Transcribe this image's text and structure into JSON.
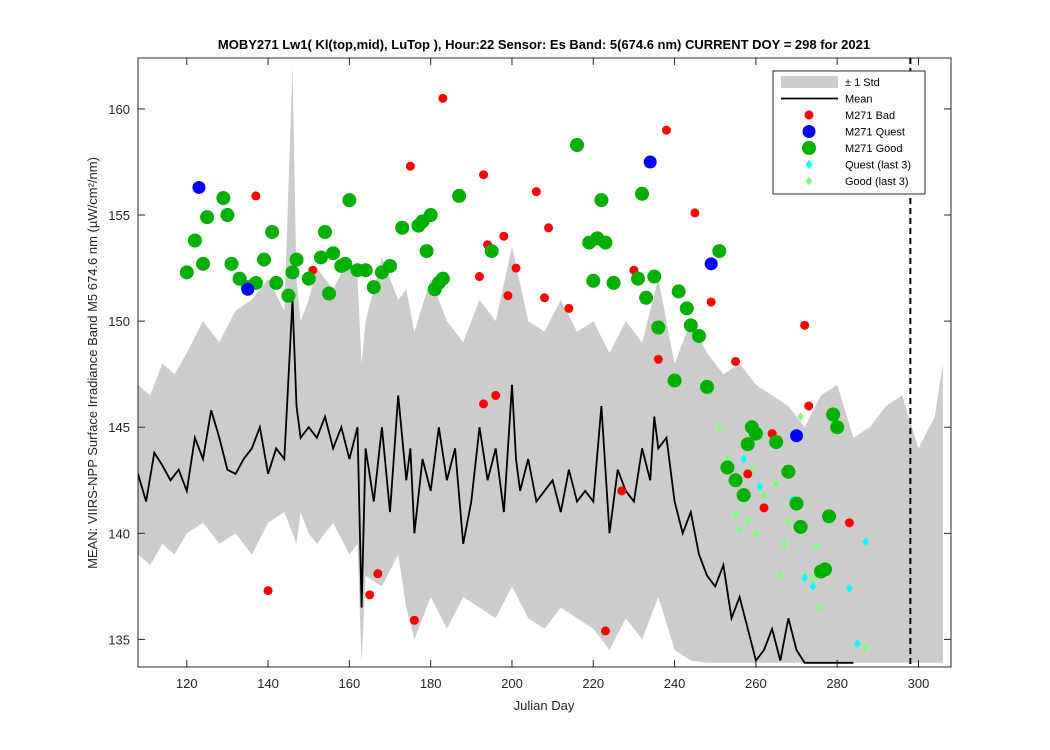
{
  "chart_data": {
    "type": "scatter",
    "title": "MOBY271   Lw1( Kl(top,mid), LuTop ),   Hour:22 Sensor: Es Band: 5(674.6 nm)   CURRENT DOY = 298 for 2021",
    "xlabel": "Julian Day",
    "ylabel": "MEAN: VIIRS-NPP Surface Irradiance Band M5 674.6 nm (µW/cm²/nm)",
    "xlim": [
      108,
      308
    ],
    "ylim": [
      133.7,
      162.4
    ],
    "xticks": [
      120,
      140,
      160,
      180,
      200,
      220,
      240,
      260,
      280,
      300
    ],
    "yticks": [
      135,
      140,
      145,
      150,
      155,
      160
    ],
    "grid": false,
    "legend_position": "top-right",
    "current_doy": 298,
    "colors": {
      "std_band": "#cccccc",
      "mean": "#000000",
      "bad": "#ff0000",
      "quest": "#0000ff",
      "good": "#00b000",
      "quest_last3": "#00ffff",
      "good_last3": "#80ff80"
    },
    "legend": [
      "± 1 Std",
      "Mean",
      "M271 Bad",
      "M271 Quest",
      "M271 Good",
      "Quest (last 3)",
      "Good (last 3)"
    ],
    "series": [
      {
        "name": "Mean",
        "kind": "line",
        "x": [
          108,
          110,
          112,
          114,
          116,
          118,
          120,
          122,
          124,
          126,
          128,
          130,
          132,
          134,
          136,
          138,
          140,
          142,
          144,
          146,
          147,
          148,
          150,
          152,
          154,
          156,
          158,
          160,
          162,
          163,
          164,
          166,
          168,
          170,
          172,
          174,
          175,
          176,
          178,
          180,
          182,
          184,
          186,
          188,
          190,
          192,
          194,
          196,
          198,
          200,
          201,
          202,
          204,
          206,
          208,
          210,
          212,
          214,
          216,
          218,
          220,
          222,
          224,
          226,
          228,
          230,
          232,
          234,
          235,
          236,
          238,
          240,
          242,
          244,
          246,
          248,
          250,
          252,
          254,
          256,
          258,
          260,
          262,
          264,
          266,
          268,
          270,
          272,
          274,
          276,
          278,
          280,
          282,
          284
        ],
        "y": [
          142.8,
          141.5,
          143.8,
          143.2,
          142.5,
          143.0,
          142.0,
          144.5,
          143.5,
          145.8,
          144.5,
          143.0,
          142.8,
          143.5,
          144.0,
          145.0,
          142.8,
          144.0,
          143.5,
          151.0,
          146.0,
          144.5,
          145.0,
          144.5,
          145.5,
          144.0,
          145.0,
          143.5,
          145.0,
          136.5,
          144.0,
          141.5,
          145.0,
          141.0,
          146.5,
          142.5,
          144.0,
          140.0,
          143.5,
          142.0,
          145.0,
          142.5,
          144.0,
          139.5,
          141.5,
          145.0,
          142.5,
          144.0,
          141.0,
          147.0,
          143.5,
          142.0,
          143.5,
          141.5,
          142.0,
          142.5,
          141.0,
          143.0,
          141.5,
          142.0,
          141.5,
          146.0,
          140.0,
          143.0,
          142.0,
          141.5,
          144.0,
          142.5,
          145.5,
          144.0,
          144.5,
          141.5,
          140.0,
          141.0,
          139.0,
          138.0,
          137.5,
          138.5,
          136.0,
          137.0,
          135.5,
          134.0,
          134.5,
          135.5,
          134.0,
          136.0,
          134.5,
          133.9,
          133.9,
          133.9,
          133.9,
          133.9,
          133.9,
          133.9
        ]
      },
      {
        "name": "± 1 Std",
        "kind": "band",
        "x": [
          108,
          111,
          114,
          117,
          120,
          124,
          128,
          132,
          136,
          140,
          144,
          146,
          147,
          148,
          150,
          152,
          156,
          160,
          162,
          163,
          164,
          168,
          172,
          174,
          176,
          180,
          184,
          188,
          192,
          196,
          200,
          204,
          208,
          212,
          216,
          220,
          224,
          228,
          232,
          236,
          240,
          244,
          248,
          252,
          256,
          260,
          264,
          268,
          272,
          276,
          280,
          284,
          288,
          292,
          296,
          300,
          304,
          306
        ],
        "upper": [
          147.0,
          146.5,
          148.0,
          147.5,
          148.5,
          150.0,
          149.0,
          150.5,
          151.0,
          152.0,
          150.5,
          162.0,
          152.0,
          150.0,
          151.0,
          152.5,
          151.5,
          153.0,
          152.0,
          148.0,
          150.0,
          153.0,
          151.0,
          151.5,
          149.5,
          152.0,
          150.0,
          149.0,
          151.0,
          150.0,
          153.5,
          150.0,
          149.5,
          151.0,
          149.5,
          150.0,
          148.5,
          150.0,
          149.0,
          152.0,
          148.0,
          150.0,
          148.5,
          147.5,
          148.0,
          147.0,
          146.5,
          146.0,
          145.0,
          146.5,
          147.0,
          144.5,
          145.0,
          146.0,
          146.5,
          144.0,
          145.5,
          148.0
        ],
        "lower": [
          139.0,
          138.5,
          139.5,
          139.0,
          140.0,
          140.5,
          139.5,
          140.0,
          139.0,
          140.5,
          141.0,
          140.0,
          139.5,
          141.0,
          140.0,
          139.5,
          140.5,
          139.0,
          139.5,
          133.9,
          138.0,
          137.5,
          139.0,
          136.5,
          135.0,
          137.0,
          135.5,
          137.0,
          136.5,
          136.0,
          137.5,
          136.0,
          135.5,
          136.5,
          136.0,
          135.5,
          134.5,
          136.0,
          135.0,
          137.0,
          134.5,
          134.0,
          133.9,
          133.9,
          133.9,
          133.9,
          133.9,
          133.9,
          133.9,
          133.9,
          133.9,
          133.9,
          133.9,
          133.9,
          133.9,
          133.9,
          133.9,
          133.9
        ]
      },
      {
        "name": "M271 Bad",
        "kind": "points",
        "x": [
          131,
          137,
          140,
          151,
          165,
          167,
          170,
          175,
          176,
          183,
          192,
          193,
          193,
          194,
          196,
          198,
          199,
          201,
          206,
          208,
          209,
          214,
          223,
          227,
          230,
          236,
          238,
          245,
          249,
          255,
          258,
          262,
          264,
          272,
          273,
          283
        ],
        "y": [
          152.6,
          155.9,
          137.3,
          152.4,
          137.1,
          138.1,
          152.5,
          157.3,
          135.9,
          160.5,
          152.1,
          156.9,
          146.1,
          153.6,
          146.5,
          154.0,
          151.2,
          152.5,
          156.1,
          151.1,
          154.4,
          150.6,
          135.4,
          142.0,
          152.4,
          148.2,
          159.0,
          155.1,
          150.9,
          148.1,
          142.8,
          141.2,
          144.7,
          149.8,
          146.0,
          140.5
        ]
      },
      {
        "name": "M271 Quest",
        "kind": "points",
        "x": [
          123,
          135,
          234,
          249,
          270
        ],
        "y": [
          156.3,
          151.5,
          157.5,
          152.7,
          144.6
        ]
      },
      {
        "name": "M271 Good",
        "kind": "points",
        "x": [
          120,
          122,
          124,
          125,
          129,
          130,
          131,
          133,
          135,
          137,
          139,
          141,
          142,
          145,
          146,
          147,
          150,
          153,
          154,
          155,
          156,
          158,
          159,
          160,
          162,
          164,
          166,
          168,
          170,
          173,
          177,
          178,
          179,
          180,
          181,
          182,
          183,
          187,
          195,
          216,
          219,
          220,
          221,
          222,
          223,
          225,
          231,
          232,
          233,
          235,
          236,
          240,
          241,
          243,
          244,
          246,
          248,
          251,
          253,
          255,
          257,
          258,
          259,
          260,
          265,
          268,
          270,
          271,
          276,
          277,
          278,
          279,
          280
        ],
        "y": [
          152.3,
          153.8,
          152.7,
          154.9,
          155.8,
          155.0,
          152.7,
          152.0,
          151.6,
          151.8,
          152.9,
          154.2,
          151.8,
          151.2,
          152.3,
          152.9,
          152.0,
          153.0,
          154.2,
          151.3,
          153.2,
          152.6,
          152.7,
          155.7,
          152.4,
          152.4,
          151.6,
          152.3,
          152.6,
          154.4,
          154.5,
          154.7,
          153.3,
          155.0,
          151.5,
          151.8,
          152.0,
          155.9,
          153.3,
          158.3,
          153.7,
          151.9,
          153.9,
          155.7,
          153.7,
          151.8,
          152.0,
          156.0,
          151.1,
          152.1,
          149.7,
          147.2,
          151.4,
          150.6,
          149.8,
          149.3,
          146.9,
          153.3,
          143.1,
          142.5,
          141.8,
          144.2,
          145.0,
          144.7,
          144.3,
          142.9,
          141.4,
          140.3,
          138.2,
          138.3,
          140.8,
          145.6,
          145.0
        ]
      },
      {
        "name": "Quest (last 3)",
        "kind": "points",
        "x": [
          257,
          261,
          269,
          272,
          274,
          283,
          285,
          287
        ],
        "y": [
          143.5,
          142.2,
          141.6,
          137.9,
          137.5,
          137.4,
          134.8,
          139.6
        ]
      },
      {
        "name": "Good (last 3)",
        "kind": "points",
        "x": [
          251,
          253,
          254,
          255,
          256,
          257,
          258,
          259,
          260,
          262,
          265,
          266,
          267,
          268,
          271,
          272,
          274,
          275,
          276,
          277,
          287
        ],
        "y": [
          145.0,
          143.5,
          143.2,
          140.9,
          140.2,
          141.5,
          140.6,
          143.0,
          140.0,
          141.8,
          142.3,
          138.0,
          139.5,
          140.6,
          145.5,
          138.0,
          137.9,
          139.4,
          136.5,
          138.3,
          134.6
        ]
      }
    ]
  }
}
